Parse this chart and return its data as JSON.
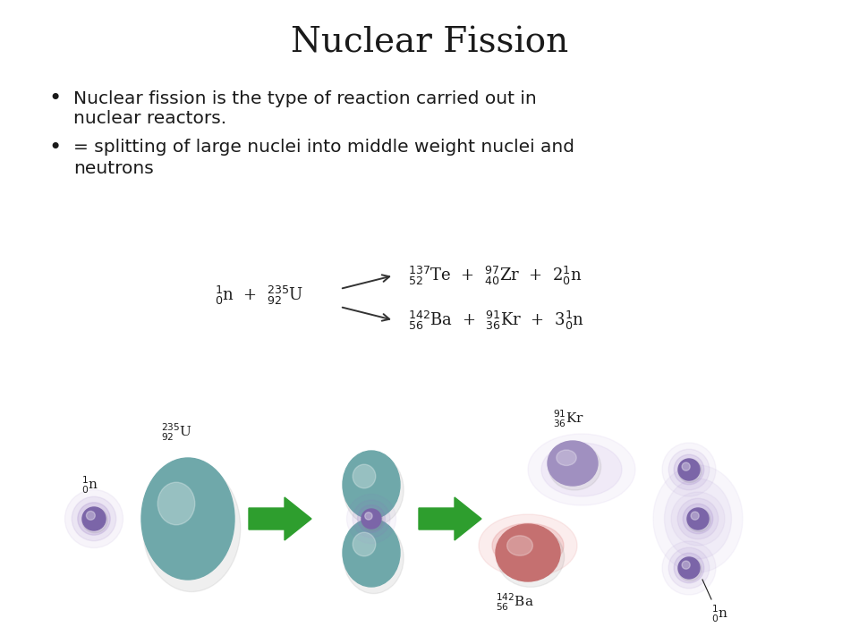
{
  "title": "Nuclear Fission",
  "title_fontsize": 28,
  "bg_color": "#ffffff",
  "text_color": "#1a1a1a",
  "bullet1_line1": "Nuclear fission is the type of reaction carried out in",
  "bullet1_line2": "nuclear reactors.",
  "bullet2_line1": "= splitting of large nuclei into middle weight nuclei and",
  "bullet2_line2": "neutrons",
  "teal_color": "#6fa8aa",
  "purple_color": "#7b65a8",
  "red_color": "#c06060",
  "green_color": "#2e9e2e",
  "lavender_color": "#a090c0",
  "text_fontsize": 14.5,
  "eq_fontsize": 13.0,
  "diagram_label_fontsize": 11.0
}
